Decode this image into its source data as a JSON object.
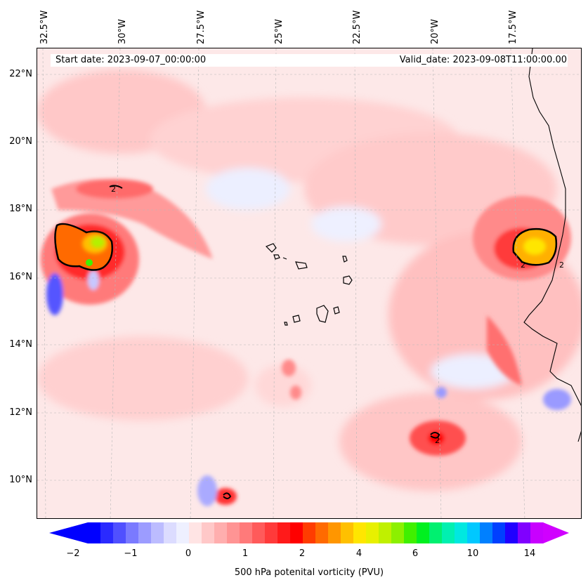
{
  "map": {
    "start_date": "Start date: 2023-09-07_00:00:00",
    "valid_date": "Valid_date: 2023-09-08T11:00:00.00",
    "lon_labels": [
      "32.5°W",
      "30°W",
      "27.5°W",
      "25°W",
      "22.5°W",
      "20°W",
      "17.5°W"
    ],
    "lat_labels": [
      "22°N",
      "20°N",
      "18°N",
      "16°N",
      "14°N",
      "12°N",
      "10°N"
    ],
    "contour_label": "2",
    "background_color": "#fde8e8"
  },
  "colorbar": {
    "title": "500 hPa potenital vorticity (PVU)",
    "tick_labels": [
      "−2",
      "−1",
      "0",
      "1",
      "2",
      "4",
      "6",
      "10",
      "14"
    ],
    "colors": [
      "#0000ff",
      "#2a2aff",
      "#5050ff",
      "#7a7aff",
      "#9c9cff",
      "#bcbcff",
      "#dcdcff",
      "#eef0ff",
      "#ffe4e4",
      "#ffc8c8",
      "#ffaeae",
      "#ff9494",
      "#ff7a7a",
      "#ff5a5a",
      "#ff3a3a",
      "#ff1a1a",
      "#ff0000",
      "#ff3c00",
      "#ff6a00",
      "#ff9600",
      "#ffc000",
      "#ffe600",
      "#e8f000",
      "#c0f000",
      "#8cf000",
      "#40f000",
      "#00f020",
      "#00f070",
      "#00f0b0",
      "#00e8e0",
      "#00c8ff",
      "#0080ff",
      "#0040ff",
      "#2000ff",
      "#8000ff",
      "#c800ff"
    ],
    "min_arrow_color": "#0000ff",
    "max_arrow_color": "#d000ff"
  }
}
